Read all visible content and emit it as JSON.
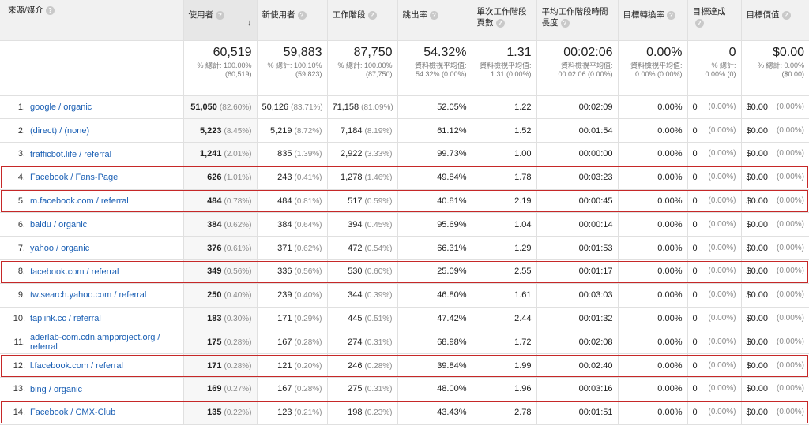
{
  "headers": {
    "source_medium": "來源/媒介",
    "users": "使用者",
    "new_users": "新使用者",
    "sessions": "工作階段",
    "bounce_rate": "跳出率",
    "pages_per_session": "單次工作階段頁數",
    "avg_session_duration": "平均工作階段時間長度",
    "goal_conversion_rate": "目標轉換率",
    "goal_completions": "目標達成",
    "goal_value": "目標價值"
  },
  "totals": {
    "users": {
      "value": "60,519",
      "sub": "% 總計: 100.00% (60,519)"
    },
    "new_users": {
      "value": "59,883",
      "sub": "% 總計: 100.10% (59,823)"
    },
    "sessions": {
      "value": "87,750",
      "sub": "% 總計: 100.00% (87,750)"
    },
    "bounce_rate": {
      "value": "54.32%",
      "sub": "資料檢視平均值: 54.32% (0.00%)"
    },
    "pages_per_session": {
      "value": "1.31",
      "sub": "資料檢視平均值: 1.31 (0.00%)"
    },
    "avg_session_duration": {
      "value": "00:02:06",
      "sub": "資料檢視平均值: 00:02:06 (0.00%)"
    },
    "goal_conversion_rate": {
      "value": "0.00%",
      "sub": "資料檢視平均值: 0.00% (0.00%)"
    },
    "goal_completions": {
      "value": "0",
      "sub": "% 總計: 0.00% (0)"
    },
    "goal_value": {
      "value": "$0.00",
      "sub": "% 總計: 0.00% ($0.00)"
    }
  },
  "rows": [
    {
      "idx": "1.",
      "source": "google / organic",
      "users": "51,050",
      "users_pct": "(82.60%)",
      "new_users": "50,126",
      "new_users_pct": "(83.71%)",
      "sessions": "71,158",
      "sessions_pct": "(81.09%)",
      "bounce": "52.05%",
      "pps": "1.22",
      "dur": "00:02:09",
      "conv": "0.00%",
      "goal": "0",
      "goal_pct": "(0.00%)",
      "value": "$0.00",
      "value_pct": "(0.00%)",
      "highlighted": false
    },
    {
      "idx": "2.",
      "source": "(direct) / (none)",
      "users": "5,223",
      "users_pct": "(8.45%)",
      "new_users": "5,219",
      "new_users_pct": "(8.72%)",
      "sessions": "7,184",
      "sessions_pct": "(8.19%)",
      "bounce": "61.12%",
      "pps": "1.52",
      "dur": "00:01:54",
      "conv": "0.00%",
      "goal": "0",
      "goal_pct": "(0.00%)",
      "value": "$0.00",
      "value_pct": "(0.00%)",
      "highlighted": false
    },
    {
      "idx": "3.",
      "source": "trafficbot.life / referral",
      "users": "1,241",
      "users_pct": "(2.01%)",
      "new_users": "835",
      "new_users_pct": "(1.39%)",
      "sessions": "2,922",
      "sessions_pct": "(3.33%)",
      "bounce": "99.73%",
      "pps": "1.00",
      "dur": "00:00:00",
      "conv": "0.00%",
      "goal": "0",
      "goal_pct": "(0.00%)",
      "value": "$0.00",
      "value_pct": "(0.00%)",
      "highlighted": false
    },
    {
      "idx": "4.",
      "source": "Facebook / Fans-Page",
      "users": "626",
      "users_pct": "(1.01%)",
      "new_users": "243",
      "new_users_pct": "(0.41%)",
      "sessions": "1,278",
      "sessions_pct": "(1.46%)",
      "bounce": "49.84%",
      "pps": "1.78",
      "dur": "00:03:23",
      "conv": "0.00%",
      "goal": "0",
      "goal_pct": "(0.00%)",
      "value": "$0.00",
      "value_pct": "(0.00%)",
      "highlighted": true
    },
    {
      "idx": "5.",
      "source": "m.facebook.com / referral",
      "users": "484",
      "users_pct": "(0.78%)",
      "new_users": "484",
      "new_users_pct": "(0.81%)",
      "sessions": "517",
      "sessions_pct": "(0.59%)",
      "bounce": "40.81%",
      "pps": "2.19",
      "dur": "00:00:45",
      "conv": "0.00%",
      "goal": "0",
      "goal_pct": "(0.00%)",
      "value": "$0.00",
      "value_pct": "(0.00%)",
      "highlighted": true
    },
    {
      "idx": "6.",
      "source": "baidu / organic",
      "users": "384",
      "users_pct": "(0.62%)",
      "new_users": "384",
      "new_users_pct": "(0.64%)",
      "sessions": "394",
      "sessions_pct": "(0.45%)",
      "bounce": "95.69%",
      "pps": "1.04",
      "dur": "00:00:14",
      "conv": "0.00%",
      "goal": "0",
      "goal_pct": "(0.00%)",
      "value": "$0.00",
      "value_pct": "(0.00%)",
      "highlighted": false
    },
    {
      "idx": "7.",
      "source": "yahoo / organic",
      "users": "376",
      "users_pct": "(0.61%)",
      "new_users": "371",
      "new_users_pct": "(0.62%)",
      "sessions": "472",
      "sessions_pct": "(0.54%)",
      "bounce": "66.31%",
      "pps": "1.29",
      "dur": "00:01:53",
      "conv": "0.00%",
      "goal": "0",
      "goal_pct": "(0.00%)",
      "value": "$0.00",
      "value_pct": "(0.00%)",
      "highlighted": false
    },
    {
      "idx": "8.",
      "source": "facebook.com / referral",
      "users": "349",
      "users_pct": "(0.56%)",
      "new_users": "336",
      "new_users_pct": "(0.56%)",
      "sessions": "530",
      "sessions_pct": "(0.60%)",
      "bounce": "25.09%",
      "pps": "2.55",
      "dur": "00:01:17",
      "conv": "0.00%",
      "goal": "0",
      "goal_pct": "(0.00%)",
      "value": "$0.00",
      "value_pct": "(0.00%)",
      "highlighted": true
    },
    {
      "idx": "9.",
      "source": "tw.search.yahoo.com / referral",
      "users": "250",
      "users_pct": "(0.40%)",
      "new_users": "239",
      "new_users_pct": "(0.40%)",
      "sessions": "344",
      "sessions_pct": "(0.39%)",
      "bounce": "46.80%",
      "pps": "1.61",
      "dur": "00:03:03",
      "conv": "0.00%",
      "goal": "0",
      "goal_pct": "(0.00%)",
      "value": "$0.00",
      "value_pct": "(0.00%)",
      "highlighted": false
    },
    {
      "idx": "10.",
      "source": "taplink.cc / referral",
      "users": "183",
      "users_pct": "(0.30%)",
      "new_users": "171",
      "new_users_pct": "(0.29%)",
      "sessions": "445",
      "sessions_pct": "(0.51%)",
      "bounce": "47.42%",
      "pps": "2.44",
      "dur": "00:01:32",
      "conv": "0.00%",
      "goal": "0",
      "goal_pct": "(0.00%)",
      "value": "$0.00",
      "value_pct": "(0.00%)",
      "highlighted": false
    },
    {
      "idx": "11.",
      "source": "aderlab-com.cdn.ampproject.org / referral",
      "users": "175",
      "users_pct": "(0.28%)",
      "new_users": "167",
      "new_users_pct": "(0.28%)",
      "sessions": "274",
      "sessions_pct": "(0.31%)",
      "bounce": "68.98%",
      "pps": "1.72",
      "dur": "00:02:08",
      "conv": "0.00%",
      "goal": "0",
      "goal_pct": "(0.00%)",
      "value": "$0.00",
      "value_pct": "(0.00%)",
      "highlighted": false
    },
    {
      "idx": "12.",
      "source": "l.facebook.com / referral",
      "users": "171",
      "users_pct": "(0.28%)",
      "new_users": "121",
      "new_users_pct": "(0.20%)",
      "sessions": "246",
      "sessions_pct": "(0.28%)",
      "bounce": "39.84%",
      "pps": "1.99",
      "dur": "00:02:40",
      "conv": "0.00%",
      "goal": "0",
      "goal_pct": "(0.00%)",
      "value": "$0.00",
      "value_pct": "(0.00%)",
      "highlighted": true
    },
    {
      "idx": "13.",
      "source": "bing / organic",
      "users": "169",
      "users_pct": "(0.27%)",
      "new_users": "167",
      "new_users_pct": "(0.28%)",
      "sessions": "275",
      "sessions_pct": "(0.31%)",
      "bounce": "48.00%",
      "pps": "1.96",
      "dur": "00:03:16",
      "conv": "0.00%",
      "goal": "0",
      "goal_pct": "(0.00%)",
      "value": "$0.00",
      "value_pct": "(0.00%)",
      "highlighted": false
    },
    {
      "idx": "14.",
      "source": "Facebook / CMX-Club",
      "users": "135",
      "users_pct": "(0.22%)",
      "new_users": "123",
      "new_users_pct": "(0.21%)",
      "sessions": "198",
      "sessions_pct": "(0.23%)",
      "bounce": "43.43%",
      "pps": "2.78",
      "dur": "00:01:51",
      "conv": "0.00%",
      "goal": "0",
      "goal_pct": "(0.00%)",
      "value": "$0.00",
      "value_pct": "(0.00%)",
      "highlighted": true
    }
  ],
  "colors": {
    "highlight_border": "#c62828",
    "link": "#1a5fb4",
    "header_bg": "#f1f1f1"
  },
  "icons": {
    "help": "help-circle-icon",
    "sort": "sort-descending-icon"
  }
}
